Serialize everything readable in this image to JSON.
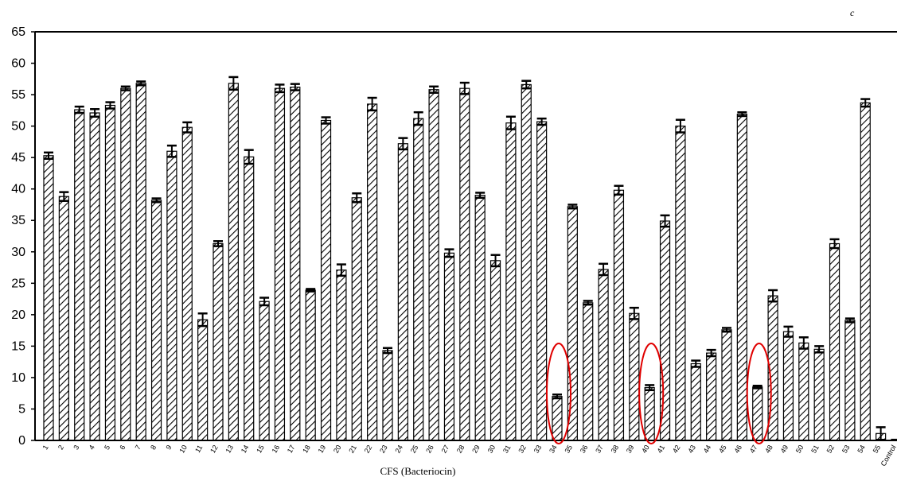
{
  "chart_data": {
    "type": "bar",
    "corner_mark": "c",
    "xlabel": "CFS (Bacteriocin)",
    "ylabel": "",
    "ylim": [
      0,
      65
    ],
    "yticks": [
      "0",
      "5",
      "10",
      "15",
      "20",
      "25",
      "30",
      "35",
      "40",
      "45",
      "50",
      "55",
      "60",
      "65"
    ],
    "grid": false,
    "bar_pattern": "diagonal-hatch",
    "highlight_color": "#e00000",
    "categories": [
      "1",
      "2",
      "3",
      "4",
      "5",
      "6",
      "7",
      "8",
      "9",
      "10",
      "11",
      "12",
      "13",
      "14",
      "15",
      "16",
      "17",
      "18",
      "19",
      "20",
      "21",
      "22",
      "23",
      "24",
      "25",
      "26",
      "27",
      "28",
      "29",
      "30",
      "31",
      "32",
      "33",
      "34",
      "35",
      "36",
      "37",
      "38",
      "39",
      "40",
      "41",
      "42",
      "43",
      "44",
      "45",
      "46",
      "47",
      "48",
      "49",
      "50",
      "51",
      "52",
      "53",
      "54",
      "55",
      "Control"
    ],
    "values": [
      45.3,
      38.8,
      52.6,
      52.1,
      53.3,
      56,
      56.8,
      38.2,
      46,
      49.8,
      19.2,
      31.3,
      56.8,
      45.1,
      22.1,
      56,
      56.2,
      23.9,
      50.9,
      27.1,
      38.6,
      53.5,
      14.3,
      47.2,
      51.2,
      55.8,
      29.8,
      56,
      39,
      28.6,
      50.5,
      56.6,
      50.7,
      7,
      37.2,
      21.9,
      27.2,
      39.8,
      20.2,
      8.4,
      34.9,
      50,
      12.2,
      13.9,
      17.6,
      51.9,
      8.5,
      23,
      17.3,
      15.5,
      14.5,
      31.3,
      19.1,
      53.7,
      1.1,
      0.1
    ],
    "errors": [
      0.5,
      0.7,
      0.5,
      0.6,
      0.5,
      0.3,
      0.3,
      0.3,
      0.9,
      0.8,
      1,
      0.4,
      1,
      1.1,
      0.6,
      0.6,
      0.5,
      0.2,
      0.5,
      0.9,
      0.7,
      1,
      0.4,
      0.9,
      1,
      0.5,
      0.6,
      0.9,
      0.4,
      0.9,
      1,
      0.6,
      0.5,
      0.3,
      0.3,
      0.3,
      0.9,
      0.7,
      0.9,
      0.4,
      0.9,
      1,
      0.5,
      0.5,
      0.3,
      0.3,
      0.2,
      0.9,
      0.8,
      0.9,
      0.5,
      0.7,
      0.3,
      0.6,
      1,
      0
    ],
    "highlighted_categories": [
      "34",
      "40",
      "47"
    ]
  }
}
